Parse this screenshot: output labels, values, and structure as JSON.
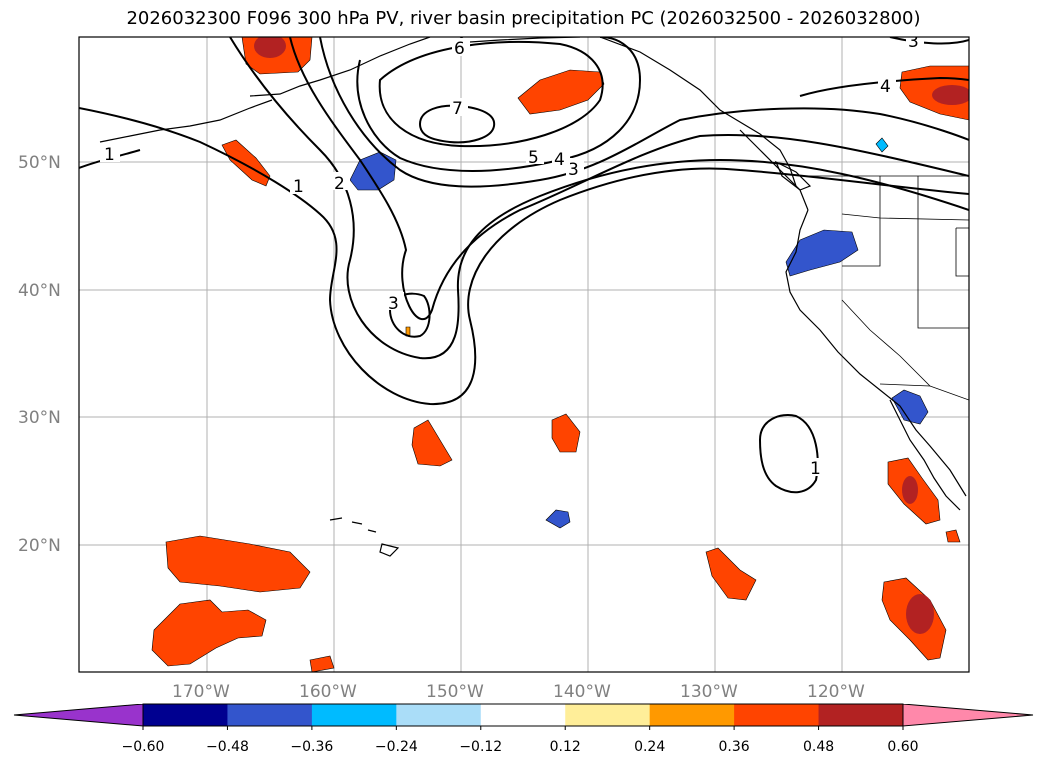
{
  "title": "2026032300 F096 300 hPa PV, river basin precipitation PC (2026032500 - 2026032800)",
  "map": {
    "lon_labels": [
      "170°W",
      "160°W",
      "150°W",
      "140°W",
      "130°W",
      "120°W"
    ],
    "lat_labels": [
      "50°N",
      "40°N",
      "30°N",
      "20°N"
    ]
  },
  "pv_contour_labels": [
    "1",
    "1",
    "2",
    "3",
    "3",
    "4",
    "4",
    "5",
    "6",
    "7",
    "1",
    "3"
  ],
  "colorbar": {
    "ticks": [
      "−0.60",
      "−0.48",
      "−0.36",
      "−0.24",
      "−0.12",
      "0.12",
      "0.24",
      "0.36",
      "0.48",
      "0.60"
    ],
    "colors": [
      "#9933cc",
      "#000090",
      "#3355cc",
      "#00bbff",
      "#aaddf8",
      "#ffffff",
      "#ffee99",
      "#ff9900",
      "#ff4400",
      "#b22222",
      "#ff88aa"
    ]
  }
}
